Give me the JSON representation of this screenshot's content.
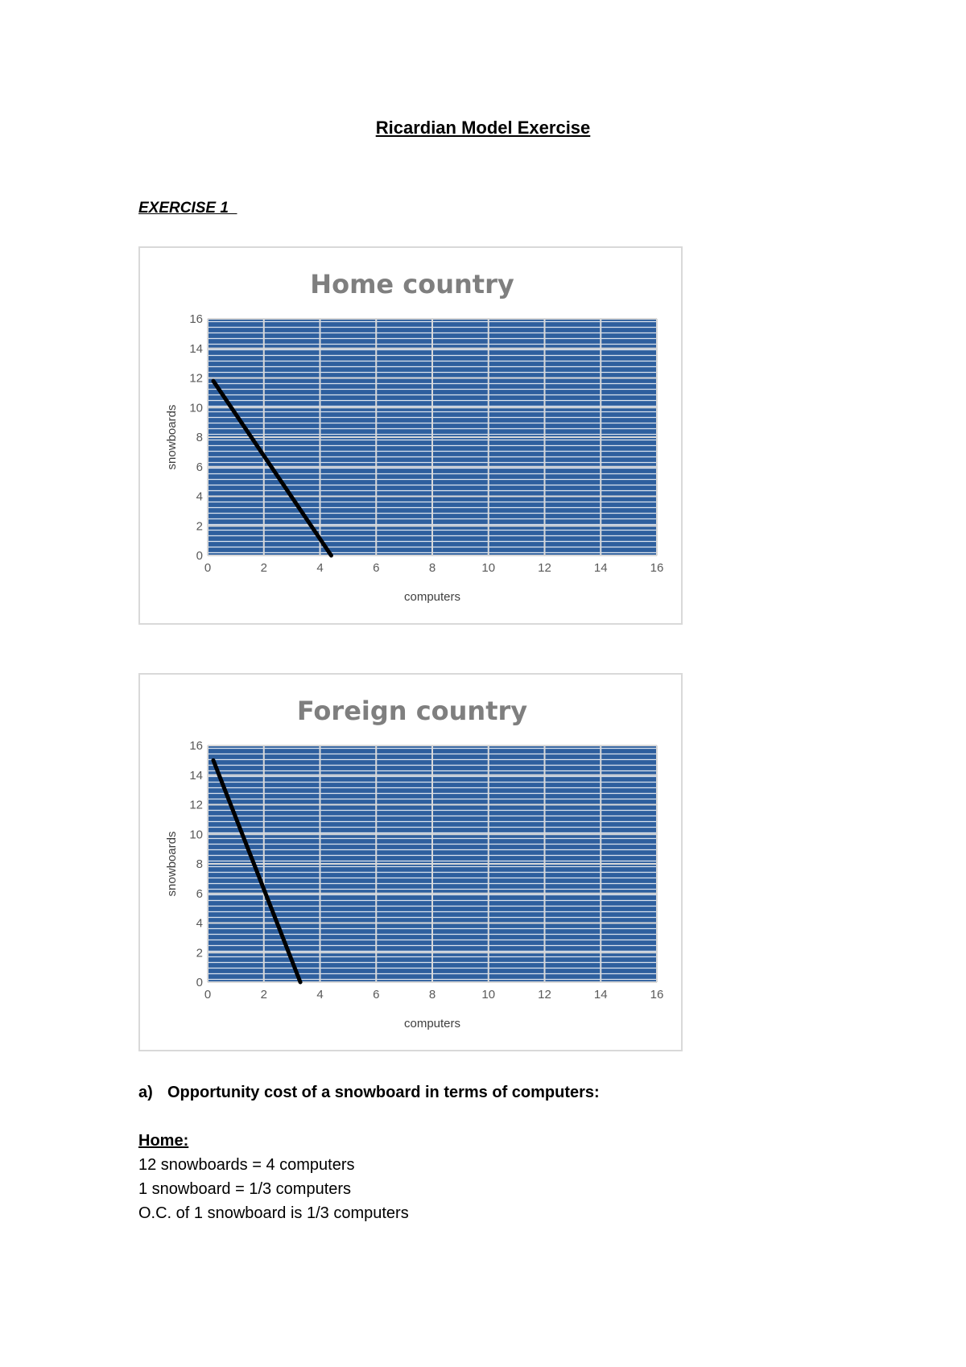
{
  "document": {
    "title": "Ricardian Model Exercise",
    "exercise_heading": "EXERCISE 1  "
  },
  "chart_data": [
    {
      "type": "line",
      "title": "Home country",
      "xlabel": "computers",
      "ylabel": "snowboards",
      "xlim": [
        0,
        16
      ],
      "ylim": [
        0,
        16
      ],
      "xticks": [
        0,
        2,
        4,
        6,
        8,
        10,
        12,
        14,
        16
      ],
      "yticks": [
        0,
        2,
        4,
        6,
        8,
        10,
        12,
        14,
        16
      ],
      "grid": true,
      "plot_background": "#2e5f9e",
      "line_color": "#000000",
      "series": [
        {
          "x": [
            0.2,
            4.4
          ],
          "y": [
            11.8,
            0
          ]
        }
      ]
    },
    {
      "type": "line",
      "title": "Foreign country",
      "xlabel": "computers",
      "ylabel": "snowboards",
      "xlim": [
        0,
        16
      ],
      "ylim": [
        0,
        16
      ],
      "xticks": [
        0,
        2,
        4,
        6,
        8,
        10,
        12,
        14,
        16
      ],
      "yticks": [
        0,
        2,
        4,
        6,
        8,
        10,
        12,
        14,
        16
      ],
      "grid": true,
      "plot_background": "#2e5f9e",
      "line_color": "#000000",
      "series": [
        {
          "x": [
            0.2,
            3.3
          ],
          "y": [
            15,
            0
          ]
        }
      ]
    }
  ],
  "questions": {
    "a_marker": "a)",
    "a_text": "Opportunity cost of a snowboard in terms of computers:",
    "home_heading": "Home:",
    "home_lines": [
      "12 snowboards = 4 computers",
      "1 snowboard = 1/3 computers",
      "O.C. of 1 snowboard is 1/3 computers"
    ]
  }
}
